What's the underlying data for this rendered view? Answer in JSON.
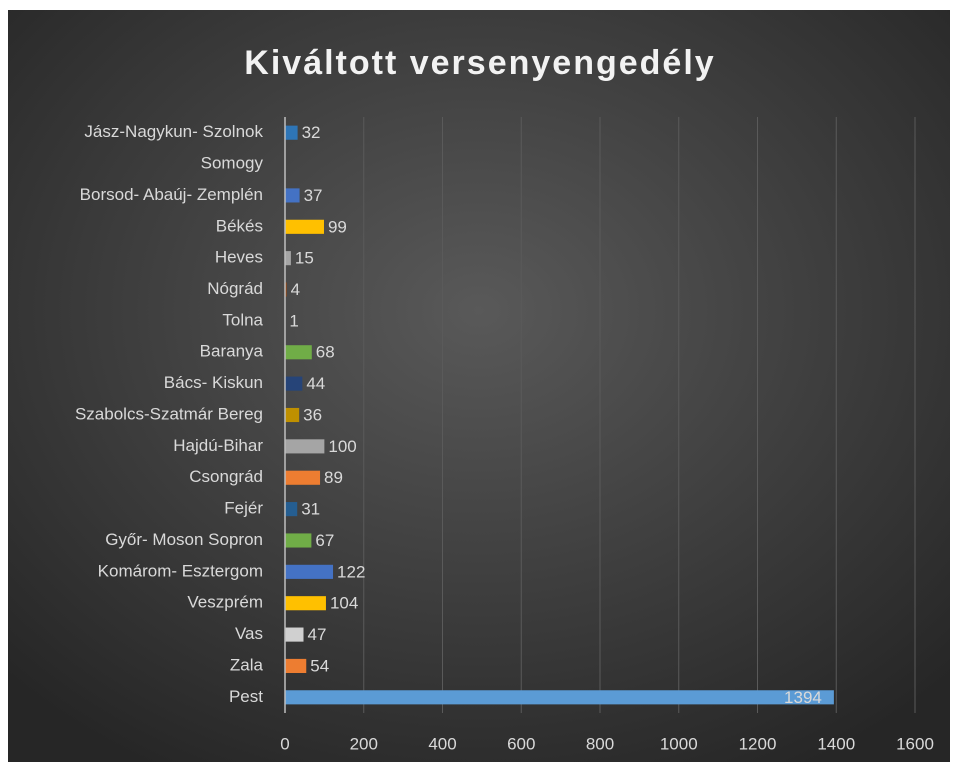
{
  "chart_data": {
    "type": "barh",
    "title": "Kiváltott versenyengedély",
    "categories": [
      "Jász-Nagykun- Szolnok",
      "Somogy",
      "Borsod- Abaúj- Zemplén",
      "Békés",
      "Heves",
      "Nógrád",
      "Tolna",
      "Baranya",
      "Bács- Kiskun",
      "Szabolcs-Szatmár Bereg",
      "Hajdú-Bihar",
      "Csongrád",
      "Fejér",
      "Győr- Moson Sopron",
      "Komárom- Esztergom",
      "Veszprém",
      "Vas",
      "Zala",
      "Pest"
    ],
    "values": [
      32,
      null,
      37,
      99,
      15,
      4,
      1,
      68,
      44,
      36,
      100,
      89,
      31,
      67,
      122,
      104,
      47,
      54,
      1394
    ],
    "colors": [
      "#2e75b6",
      "#5b9bd5",
      "#4472c4",
      "#ffc000",
      "#a5a5a5",
      "#9e480e",
      "#636363",
      "#70ad47",
      "#264478",
      "#bf9000",
      "#a5a5a5",
      "#ed7d31",
      "#255e91",
      "#70ad47",
      "#4472c4",
      "#ffc000",
      "#d0d0d0",
      "#ed7d31",
      "#5b9bd5"
    ],
    "xlim": [
      0,
      1600
    ],
    "xticks": [
      0,
      200,
      400,
      600,
      800,
      1000,
      1200,
      1400,
      1600
    ],
    "grid": true
  }
}
